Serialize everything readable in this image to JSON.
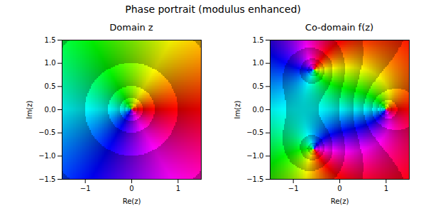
{
  "title": "Phase portrait (modulus enhanced)",
  "chart_data": [
    {
      "type": "phase_portrait",
      "title": "Domain z",
      "xlabel": "Re(z)",
      "ylabel": "Im(z)",
      "zeros": [
        [
          0,
          0
        ]
      ],
      "poles": [],
      "xlim": [
        -1.5,
        1.5
      ],
      "ylim": [
        -1.5,
        1.5
      ],
      "xticks": [
        {
          "value": -1,
          "label": "−1"
        },
        0,
        1
      ],
      "yticks": [
        {
          "value": -1.5,
          "label": "−1.5"
        },
        {
          "value": -1,
          "label": "−1.0"
        },
        {
          "value": -0.5,
          "label": "−0.5"
        },
        {
          "value": 0,
          "label": "0.0"
        },
        0.5,
        {
          "value": 1,
          "label": "1.0"
        },
        1.5
      ]
    },
    {
      "type": "phase_portrait",
      "title": "Co-domain f(z)",
      "xlabel": "Re(z)",
      "ylabel": "Im(z)",
      "zeros": [
        [
          1,
          0
        ]
      ],
      "poles": [
        [
          -0.55,
          0.85
        ],
        [
          -0.55,
          -0.85
        ]
      ],
      "xlim": [
        -1.5,
        1.5
      ],
      "ylim": [
        -1.5,
        1.5
      ],
      "xticks": [
        {
          "value": -1,
          "label": "−1"
        },
        0,
        1
      ],
      "yticks": [
        {
          "value": -1.5,
          "label": "−1.5"
        },
        {
          "value": -1,
          "label": "−1.0"
        },
        {
          "value": -0.5,
          "label": "−0.5"
        },
        {
          "value": 0,
          "label": "0.0"
        },
        0.5,
        {
          "value": 1,
          "label": "1.0"
        },
        1.5
      ]
    }
  ]
}
